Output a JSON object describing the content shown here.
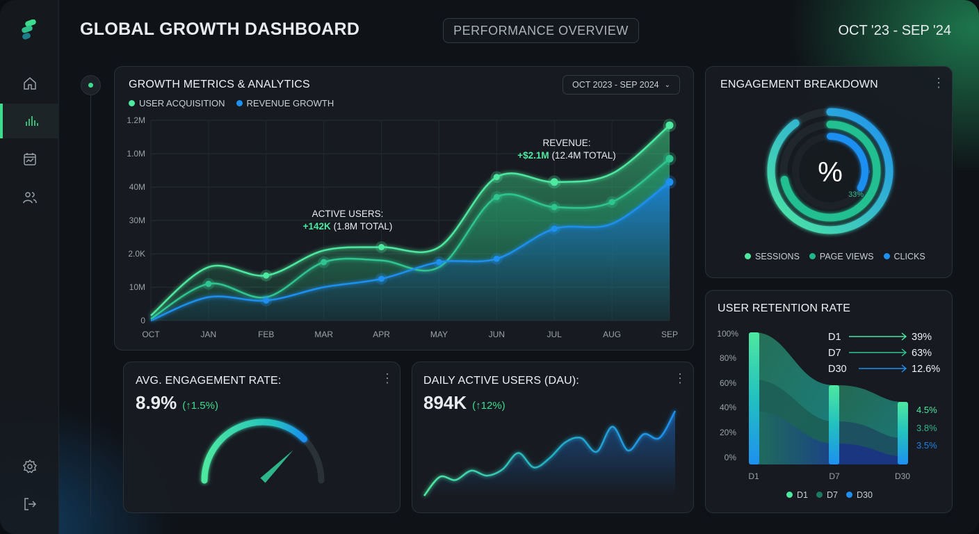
{
  "header": {
    "title": "GLOBAL GROWTH DASHBOARD",
    "tab": "PERFORMANCE OVERVIEW",
    "date_range": "OCT '23 - SEP '24"
  },
  "sidebar": {
    "items": [
      {
        "icon": "home-icon"
      },
      {
        "icon": "bar-chart-icon",
        "active": true
      },
      {
        "icon": "calendar-chart-icon"
      },
      {
        "icon": "users-icon"
      }
    ],
    "bottom": [
      {
        "icon": "gear-icon"
      },
      {
        "icon": "logout-icon"
      }
    ]
  },
  "colors": {
    "accent": "#3ddc8c",
    "teal": "#22b58a",
    "blue": "#1e90f0",
    "card": "#181c22"
  },
  "growth": {
    "title": "GROWTH METRICS & ANALYTICS",
    "range_select": "OCT 2023 - SEP 2024",
    "legend": [
      "USER ACQUISITION",
      "REVENUE GROWTH"
    ],
    "annotation_users": {
      "label": "ACTIVE USERS:",
      "delta": "+142K",
      "total": "(1.8M TOTAL)"
    },
    "annotation_revenue": {
      "label": "REVENUE:",
      "delta": "+$2.1M",
      "total": "(12.4M TOTAL)"
    }
  },
  "chart_data": {
    "type": "area",
    "categories": [
      "OCT",
      "JAN",
      "FEB",
      "MAR",
      "APR",
      "MAY",
      "JUN",
      "JUL",
      "AUG",
      "SEP"
    ],
    "y_tick_labels": [
      "0",
      "10M",
      "2.0K",
      "30M",
      "40M",
      "1.0M",
      "1.2M"
    ],
    "ylim": [
      0,
      1.2
    ],
    "grid": true,
    "legend_position": "top-left",
    "series": [
      {
        "name": "USER ACQUISITION",
        "color": "#4ee8a0",
        "values": [
          0.03,
          0.32,
          0.27,
          0.42,
          0.44,
          0.44,
          0.86,
          0.83,
          0.88,
          1.17
        ]
      },
      {
        "color": "#2fc590",
        "values": [
          0.01,
          0.22,
          0.14,
          0.35,
          0.36,
          0.32,
          0.74,
          0.68,
          0.71,
          0.97
        ]
      },
      {
        "name": "REVENUE GROWTH",
        "color": "#1e90f0",
        "values": [
          0.0,
          0.14,
          0.12,
          0.2,
          0.25,
          0.35,
          0.37,
          0.55,
          0.58,
          0.83
        ]
      }
    ]
  },
  "engagement": {
    "title": "ENGAGEMENT BREAKDOWN",
    "center": "%",
    "small_pct": "%",
    "inner_label": "33%",
    "legend": [
      "SESSIONS",
      "PAGE VIEWS",
      "CLICKS"
    ],
    "rings": [
      0.9,
      0.72,
      0.33
    ]
  },
  "retention": {
    "title": "USER RETENTION RATE",
    "y_ticks": [
      "100%",
      "80%",
      "60%",
      "40%",
      "20%",
      "0%"
    ],
    "x_ticks": [
      "D1",
      "D7",
      "D30"
    ],
    "callouts": [
      {
        "label": "D1",
        "value": "39%"
      },
      {
        "label": "D7",
        "value": "63%"
      },
      {
        "label": "D30",
        "value": "12.6%"
      }
    ],
    "end_values": [
      "4.5%",
      "3.8%",
      "3.5%"
    ],
    "legend": [
      "D1",
      "D7",
      "D30"
    ]
  },
  "avg_engagement": {
    "title": "AVG. ENGAGEMENT RATE:",
    "value": "8.9%",
    "change": "(↑1.5%)",
    "gauge_level": 0.75
  },
  "dau": {
    "title": "DAILY ACTIVE USERS (DAU):",
    "value": "894K",
    "change": "(↑12%)",
    "spark": [
      0,
      30,
      25,
      40,
      32,
      42,
      68,
      45,
      60,
      85,
      92,
      70,
      110,
      72,
      98,
      92,
      135
    ]
  }
}
